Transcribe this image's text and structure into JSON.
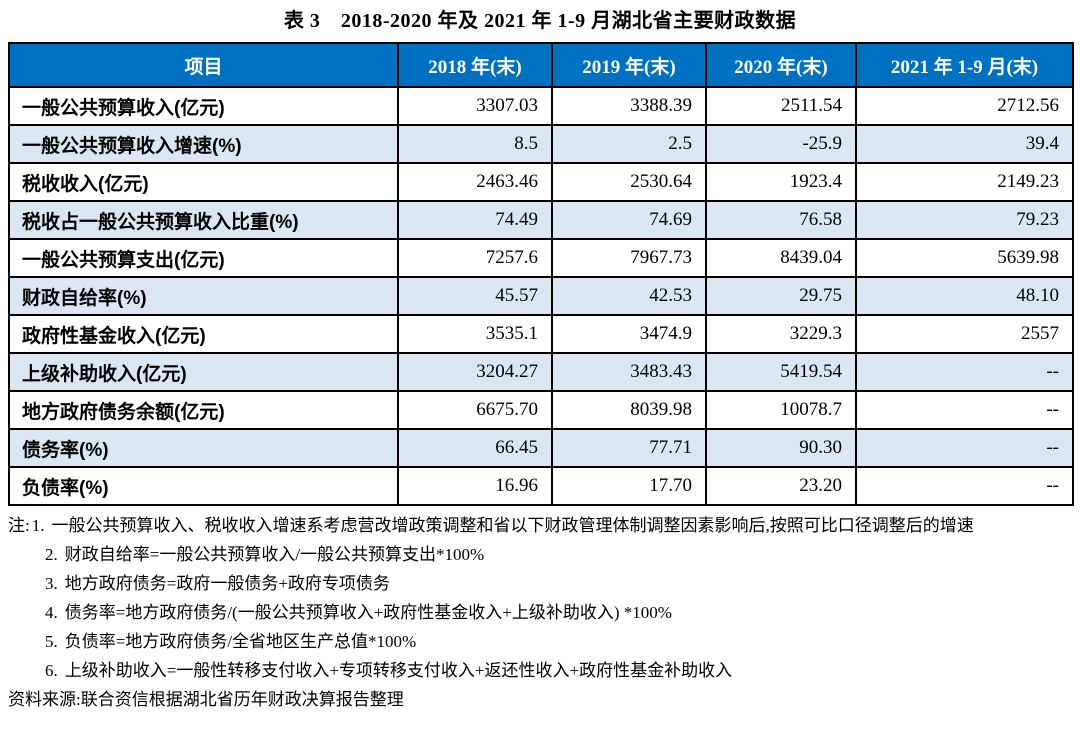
{
  "title": "表 3　2018-2020 年及 2021 年 1-9 月湖北省主要财政数据",
  "table": {
    "headers": [
      "项目",
      "2018 年(末)",
      "2019 年(末)",
      "2020 年(末)",
      "2021 年 1-9 月(末)"
    ],
    "rows": [
      {
        "label": "一般公共预算收入(亿元)",
        "values": [
          "3307.03",
          "3388.39",
          "2511.54",
          "2712.56"
        ]
      },
      {
        "label": "一般公共预算收入增速(%)",
        "values": [
          "8.5",
          "2.5",
          "-25.9",
          "39.4"
        ]
      },
      {
        "label": "税收收入(亿元)",
        "values": [
          "2463.46",
          "2530.64",
          "1923.4",
          "2149.23"
        ]
      },
      {
        "label": "税收占一般公共预算收入比重(%)",
        "values": [
          "74.49",
          "74.69",
          "76.58",
          "79.23"
        ]
      },
      {
        "label": "一般公共预算支出(亿元)",
        "values": [
          "7257.6",
          "7967.73",
          "8439.04",
          "5639.98"
        ]
      },
      {
        "label": "财政自给率(%)",
        "values": [
          "45.57",
          "42.53",
          "29.75",
          "48.10"
        ]
      },
      {
        "label": "政府性基金收入(亿元)",
        "values": [
          "3535.1",
          "3474.9",
          "3229.3",
          "2557"
        ]
      },
      {
        "label": "上级补助收入(亿元)",
        "values": [
          "3204.27",
          "3483.43",
          "5419.54",
          "--"
        ]
      },
      {
        "label": "地方政府债务余额(亿元)",
        "values": [
          "6675.70",
          "8039.98",
          "10078.7",
          "--"
        ]
      },
      {
        "label": "债务率(%)",
        "values": [
          "66.45",
          "77.71",
          "90.30",
          "--"
        ]
      },
      {
        "label": "负债率(%)",
        "values": [
          "16.96",
          "17.70",
          "23.20",
          "--"
        ]
      }
    ]
  },
  "notes": {
    "prefix": "注:",
    "items": [
      {
        "num": "1.",
        "text": "一般公共预算收入、税收收入增速系考虑营改增政策调整和省以下财政管理体制调整因素影响后,按照可比口径调整后的增速"
      },
      {
        "num": "2.",
        "text": "财政自给率=一般公共预算收入/一般公共预算支出*100%"
      },
      {
        "num": "3.",
        "text": "地方政府债务=政府一般债务+政府专项债务"
      },
      {
        "num": "4.",
        "text": "债务率=地方政府债务/(一般公共预算收入+政府性基金收入+上级补助收入) *100%"
      },
      {
        "num": "5.",
        "text": "负债率=地方政府债务/全省地区生产总值*100%"
      },
      {
        "num": "6.",
        "text": "上级补助收入=一般性转移支付收入+专项转移支付收入+返还性收入+政府性基金补助收入"
      }
    ]
  },
  "source": "资料来源:联合资信根据湖北省历年财政决算报告整理",
  "colors": {
    "header_bg": "#0070C0",
    "header_text": "#FFFFFF",
    "stripe_bg": "#DCE6F1",
    "border": "#000000",
    "text": "#000000"
  }
}
